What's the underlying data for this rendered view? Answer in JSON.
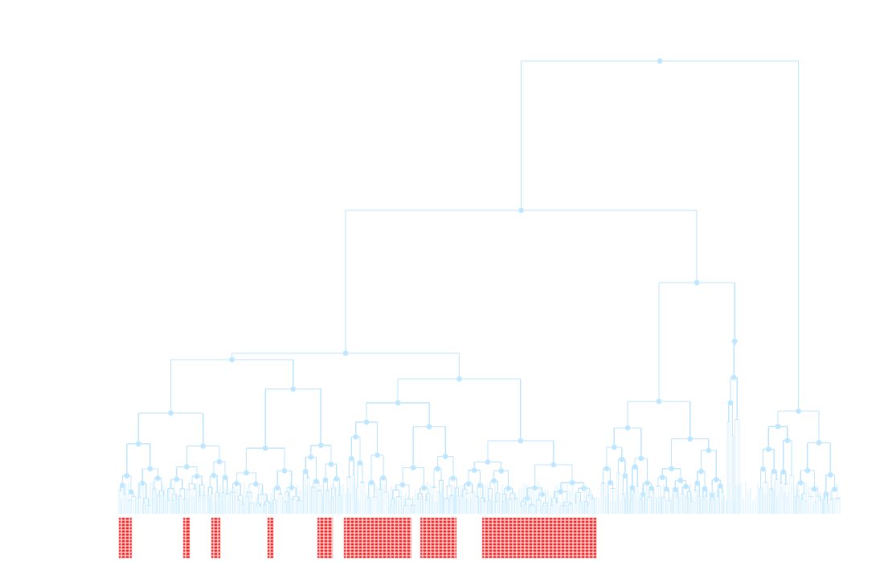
{
  "diagram": {
    "type": "dendrogram",
    "style": {
      "edge_color": "#bfe6ff",
      "node_color": "#bfe6ff",
      "label_color": "#ff2b2b",
      "background": "#ffffff"
    },
    "leaves": {
      "count_approx": 300,
      "labels_visible": false
    },
    "label_groups": 11
  }
}
